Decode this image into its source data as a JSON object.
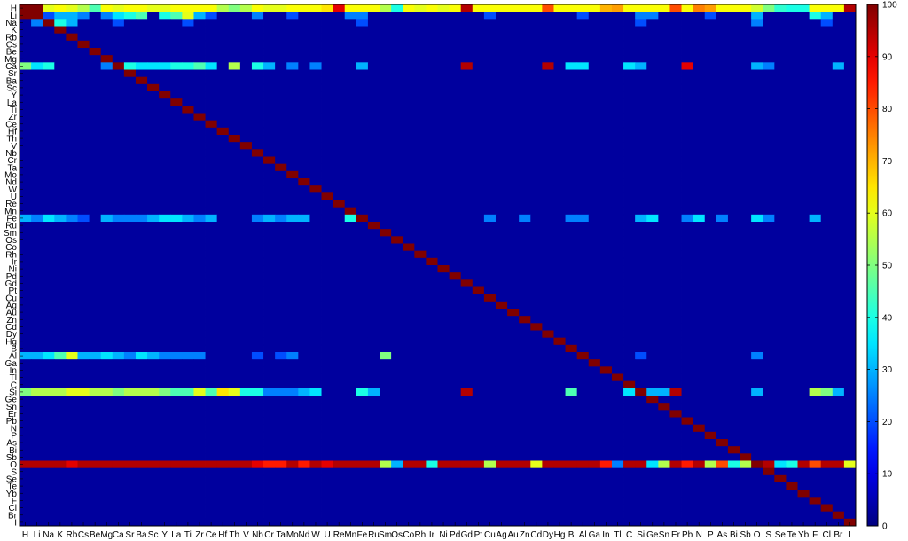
{
  "chart_data": {
    "type": "heatmap",
    "title": "",
    "xlabel": "",
    "ylabel": "",
    "elements": [
      "H",
      "Li",
      "Na",
      "K",
      "Rb",
      "Cs",
      "Be",
      "Mg",
      "Ca",
      "Sr",
      "Ba",
      "Sc",
      "Y",
      "La",
      "Ti",
      "Zr",
      "Ce",
      "Hf",
      "Th",
      "V",
      "Nb",
      "Cr",
      "Ta",
      "Mo",
      "Nd",
      "W",
      "U",
      "Re",
      "Mn",
      "Fe",
      "Ru",
      "Sm",
      "Os",
      "Co",
      "Rh",
      "Ir",
      "Ni",
      "Pd",
      "Gd",
      "Pt",
      "Cu",
      "Ag",
      "Au",
      "Zn",
      "Cd",
      "Dy",
      "Hg",
      "B",
      "Al",
      "Ga",
      "In",
      "Tl",
      "C",
      "Si",
      "Ge",
      "Sn",
      "Er",
      "Pb",
      "N",
      "P",
      "As",
      "Bi",
      "Sb",
      "O",
      "S",
      "Se",
      "Te",
      "Yb",
      "F",
      "Cl",
      "Br",
      "I"
    ],
    "x_tick_labels": [
      "H",
      "Li",
      "Na",
      "K",
      "Rb",
      "Cs",
      "Be",
      "Mg",
      "Ca",
      "Sr",
      "Ba",
      "Sc",
      "Y",
      "La",
      "Ti",
      "Zr",
      "Ce",
      "Hf",
      "Th",
      "V",
      "Nb",
      "Cr",
      "Ta",
      "Mo",
      "Nd",
      "W",
      "U",
      "Re",
      "Mn",
      "Fe",
      "Ru",
      "Sm",
      "Os",
      "Co",
      "Rh",
      "Ir",
      "Ni",
      "Pd",
      "Gd",
      "Pt",
      "Cu",
      "Ag",
      "Au",
      "Zn",
      "Cd",
      "Dy",
      "Hg",
      "B",
      "Al",
      "Ga",
      "In",
      "Tl",
      "C",
      "Si",
      "Ge",
      "Sn",
      "Er",
      "Pb",
      "N",
      "P",
      "As",
      "Bi",
      "Sb",
      "O",
      "S",
      "Se",
      "Te",
      "Yb",
      "F",
      "Cl",
      "Br",
      "I"
    ],
    "y_tick_labels": [
      "H",
      "Li",
      "Na",
      "K",
      "Rb",
      "Cs",
      "Be",
      "Mg",
      "Ca",
      "Sr",
      "Ba",
      "Sc",
      "Y",
      "La",
      "Ti",
      "Zr",
      "Ce",
      "Hf",
      "Th",
      "V",
      "Nb",
      "Cr",
      "Ta",
      "Mo",
      "Nd",
      "W",
      "U",
      "Re",
      "Mn",
      "Fe",
      "Ru",
      "Sm",
      "Os",
      "Co",
      "Rh",
      "Ir",
      "Ni",
      "Pd",
      "Gd",
      "Pt",
      "Cu",
      "Ag",
      "Au",
      "Zn",
      "Cd",
      "Dy",
      "Hg",
      "B",
      "Al",
      "Ga",
      "In",
      "Tl",
      "C",
      "Si",
      "Ge",
      "Sn",
      "Er",
      "Pb",
      "N",
      "P",
      "As",
      "Bi",
      "Sb",
      "O",
      "S",
      "Se",
      "Te",
      "Yb",
      "F",
      "Cl",
      "Br",
      "I"
    ],
    "value_range": [
      0,
      100
    ],
    "default_value": 3,
    "colormap": "jet",
    "colorbar_ticks": [
      0,
      10,
      20,
      30,
      40,
      50,
      60,
      70,
      80,
      90,
      100
    ],
    "diagonal_value": 100,
    "row_values": {
      "H": {
        "Li": 100,
        "Na": 60,
        "K": 62,
        "Rb": 60,
        "Cs": 55,
        "Be": 45,
        "Mg": 62,
        "Ca": 60,
        "Sr": 62,
        "Ba": 62,
        "Sc": 60,
        "Y": 60,
        "La": 62,
        "Ti": 62,
        "Zr": 62,
        "Ce": 62,
        "Hf": 55,
        "Th": 50,
        "V": 55,
        "Nb": 62,
        "Cr": 60,
        "Ta": 60,
        "Mo": 62,
        "Nd": 62,
        "W": 62,
        "U": 65,
        "Re": 90,
        "Mn": 62,
        "Fe": 62,
        "Ru": 62,
        "Sm": 55,
        "Os": 40,
        "Co": 62,
        "Rh": 60,
        "Ir": 62,
        "Ni": 60,
        "Pd": 62,
        "Gd": 95,
        "Pt": 62,
        "Cu": 62,
        "Ag": 62,
        "Au": 62,
        "Zn": 62,
        "Cd": 62,
        "Dy": 80,
        "Hg": 62,
        "B": 62,
        "Al": 62,
        "Ga": 62,
        "In": 70,
        "Tl": 72,
        "C": 62,
        "Si": 62,
        "Ge": 62,
        "Sn": 62,
        "Er": 80,
        "Pb": 62,
        "N": 75,
        "P": 72,
        "As": 62,
        "Bi": 62,
        "Sb": 62,
        "O": 58,
        "S": 50,
        "Se": 42,
        "Te": 40,
        "Yb": 40,
        "F": 62,
        "Cl": 62,
        "Br": 62,
        "I": 95
      },
      "Li": {
        "H": 100,
        "Na": 20,
        "K": 30,
        "Rb": 30,
        "Cs": 25,
        "Mg": 25,
        "Ca": 35,
        "Sr": 40,
        "Ba": 45,
        "Y": 40,
        "La": 45,
        "Ti": 60,
        "Zr": 30,
        "Ce": 20,
        "Nb": 25,
        "Mo": 20,
        "Mn": 25,
        "Fe": 25,
        "Cu": 20,
        "Al": 20,
        "Si": 25,
        "Ge": 25,
        "P": 20,
        "O": 30,
        "F": 40,
        "Cl": 30
      },
      "Na": {
        "Li": 25,
        "K": 40,
        "Rb": 30,
        "Ca": 20,
        "Ti": 20,
        "Fe": 20,
        "Si": 20,
        "O": 25,
        "Cl": 20
      },
      "Ca": {
        "H": 50,
        "Li": 35,
        "Na": 40,
        "Mg": 25,
        "Sr": 40,
        "Ba": 35,
        "Sc": 35,
        "Y": 35,
        "La": 40,
        "Ti": 40,
        "Zr": 45,
        "Ce": 35,
        "Th": 55,
        "Nb": 40,
        "Cr": 30,
        "Mo": 25,
        "W": 25,
        "Fe": 30,
        "Gd": 95,
        "Dy": 95,
        "B": 35,
        "Al": 35,
        "C": 35,
        "Si": 30,
        "Pb": 90,
        "O": 30,
        "S": 25,
        "Br": 30
      },
      "Fe": {
        "H": 30,
        "Li": 25,
        "Na": 35,
        "K": 30,
        "Rb": 25,
        "Cs": 20,
        "Mg": 30,
        "Ca": 25,
        "Sr": 25,
        "Ba": 25,
        "Sc": 30,
        "Y": 35,
        "La": 35,
        "Ti": 30,
        "Zr": 25,
        "Ce": 30,
        "Nb": 25,
        "Cr": 30,
        "Ta": 25,
        "Mo": 30,
        "Nd": 30,
        "Mn": 40,
        "Cu": 25,
        "Zn": 25,
        "B": 25,
        "Al": 25,
        "Si": 30,
        "Ge": 35,
        "Pb": 25,
        "N": 35,
        "As": 25,
        "O": 35,
        "S": 25,
        "F": 30
      },
      "Al": {
        "H": 30,
        "Li": 30,
        "Na": 35,
        "K": 45,
        "Rb": 60,
        "Cs": 30,
        "Be": 30,
        "Mg": 35,
        "Ca": 30,
        "Sr": 25,
        "Ba": 35,
        "Sc": 30,
        "Y": 25,
        "La": 25,
        "Ti": 25,
        "Zr": 25,
        "Nb": 20,
        "Ta": 20,
        "Mo": 25,
        "Sm": 50,
        "Si": 20,
        "O": 25
      },
      "Si": {
        "H": 50,
        "Li": 55,
        "Na": 55,
        "K": 55,
        "Rb": 60,
        "Cs": 60,
        "Be": 55,
        "Mg": 55,
        "Ca": 50,
        "Sr": 55,
        "Ba": 55,
        "Sc": 55,
        "Y": 50,
        "La": 45,
        "Ti": 45,
        "Zr": 60,
        "Ce": 45,
        "Hf": 65,
        "Th": 60,
        "V": 40,
        "Nb": 40,
        "Cr": 25,
        "Ta": 25,
        "Mo": 25,
        "Nd": 30,
        "W": 35,
        "Fe": 40,
        "Ru": 30,
        "Gd": 95,
        "B": 45,
        "C": 35,
        "Ge": 30,
        "Sn": 30,
        "Er": 95,
        "O": 30,
        "F": 55,
        "Cl": 50,
        "Br": 30
      },
      "O": {
        "H": 95,
        "Li": 95,
        "Na": 95,
        "K": 95,
        "Rb": 90,
        "Cs": 95,
        "Be": 95,
        "Mg": 95,
        "Ca": 95,
        "Sr": 95,
        "Ba": 95,
        "Sc": 95,
        "Y": 95,
        "La": 95,
        "Ti": 95,
        "Zr": 95,
        "Ce": 95,
        "Hf": 95,
        "Th": 95,
        "V": 95,
        "Nb": 90,
        "Cr": 85,
        "Ta": 85,
        "Mo": 95,
        "Nd": 85,
        "W": 95,
        "U": 90,
        "Re": 95,
        "Mn": 95,
        "Fe": 95,
        "Ru": 95,
        "Sm": 55,
        "Os": 30,
        "Co": 95,
        "Rh": 95,
        "Ir": 40,
        "Ni": 95,
        "Pd": 95,
        "Gd": 95,
        "Pt": 95,
        "Cu": 55,
        "Ag": 95,
        "Au": 95,
        "Zn": 95,
        "Cd": 60,
        "Dy": 95,
        "Hg": 95,
        "B": 95,
        "Al": 95,
        "Ga": 95,
        "In": 85,
        "Tl": 25,
        "C": 95,
        "Si": 95,
        "Ge": 35,
        "Sn": 55,
        "Er": 95,
        "Pb": 85,
        "N": 95,
        "P": 55,
        "As": 80,
        "Bi": 40,
        "Sb": 55,
        "S": 95,
        "Se": 35,
        "Te": 40,
        "Yb": 95,
        "F": 80,
        "Cl": 95,
        "Br": 95,
        "I": 60
      }
    }
  }
}
